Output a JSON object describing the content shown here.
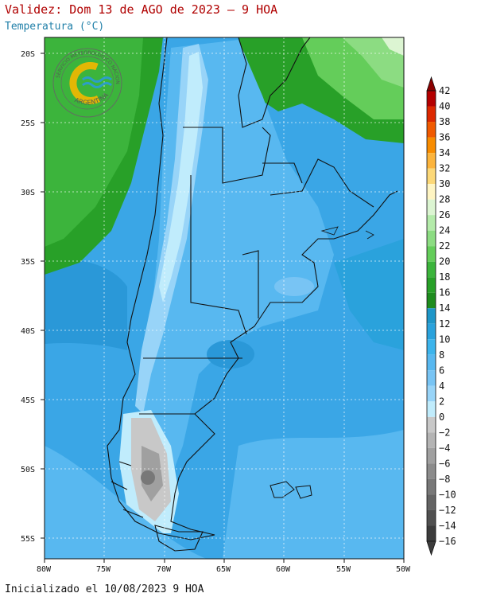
{
  "header": {
    "title": "Validez: Dom 13 de AGO de 2023 – 9 HOA",
    "subtitle": "Temperatura (°C)"
  },
  "footer": {
    "init": "Inicializado el 10/08/2023 9 HOA"
  },
  "logo": {
    "ring_text_top": "SERVICIO METEOROLOGICO NACIONAL",
    "ring_text_bottom": "ARGENTINA"
  },
  "map": {
    "lat_labels": [
      "20S",
      "25S",
      "30S",
      "35S",
      "40S",
      "45S",
      "50S",
      "55S"
    ],
    "lon_labels": [
      "80W",
      "75W",
      "70W",
      "65W",
      "60W",
      "55W",
      "50W"
    ]
  },
  "colorbar": {
    "labels": [
      "42",
      "40",
      "38",
      "36",
      "34",
      "32",
      "30",
      "28",
      "26",
      "24",
      "22",
      "20",
      "18",
      "16",
      "14",
      "12",
      "10",
      "8",
      "6",
      "4",
      "2",
      "0",
      "−2",
      "−4",
      "−6",
      "−8",
      "−10",
      "−12",
      "−14",
      "−16"
    ],
    "colors": [
      "#8b0000",
      "#b40000",
      "#dc2800",
      "#f05a00",
      "#f88c00",
      "#fcb43c",
      "#fcd878",
      "#fff5c3",
      "#dcf5d2",
      "#b4ebaa",
      "#8cdc82",
      "#64cd5a",
      "#3cb43c",
      "#28a028",
      "#1e8c1e",
      "#1e96c8",
      "#2aa2dc",
      "#3cb4ec",
      "#58b8f0",
      "#78c4f4",
      "#98d4f8",
      "#c0ecfc",
      "#c8c8c8",
      "#b4b4b4",
      "#a0a0a0",
      "#8c8c8c",
      "#787878",
      "#646464",
      "#505050",
      "#3c3c3c"
    ]
  }
}
